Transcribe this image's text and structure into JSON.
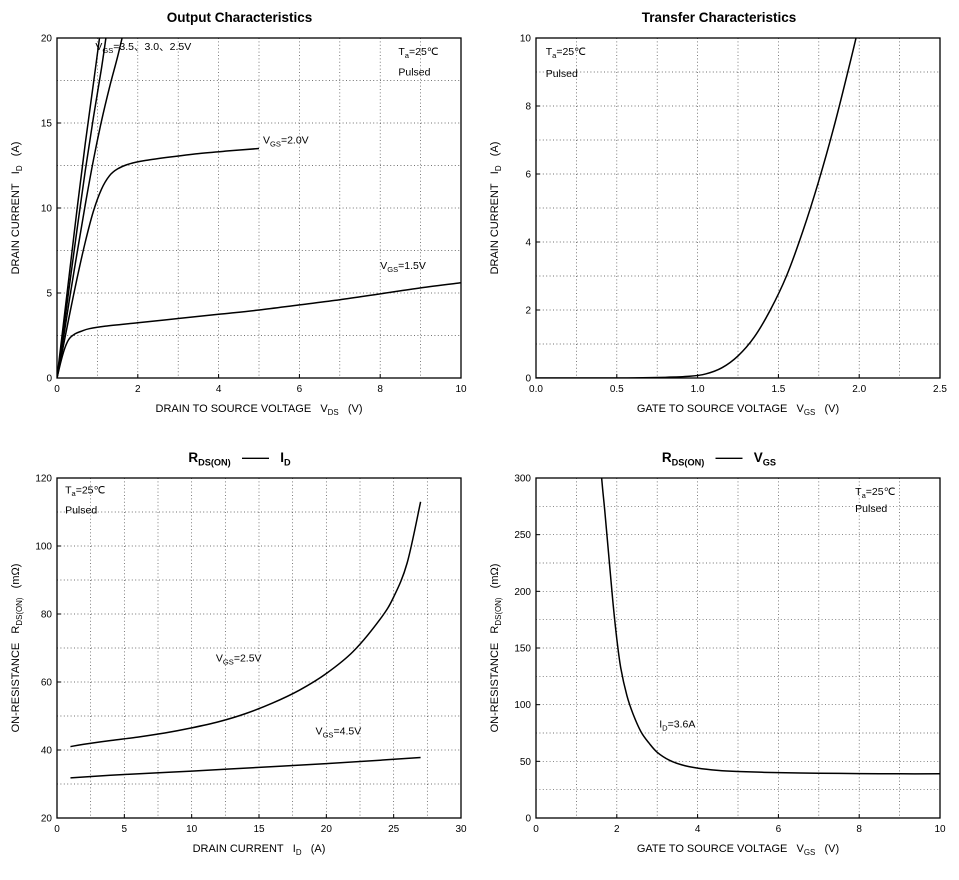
{
  "page": {
    "background": "#ffffff",
    "curve_color": "#000000",
    "grid_color": "#444444"
  },
  "chart_data": [
    {
      "id": "output-characteristics",
      "type": "line",
      "title": "Output Characteristics",
      "xlabel": "DRAIN TO SOURCE VOLTAGE   V_{DS}   (V)",
      "ylabel": "DRAIN CURRENT   I_{D}   (A)",
      "xlim": [
        0,
        10
      ],
      "ylim": [
        0,
        20
      ],
      "xticks": [
        0,
        2,
        4,
        6,
        8,
        10
      ],
      "xtick_labels": [
        "0",
        "2",
        "4",
        "6",
        "8",
        "10"
      ],
      "yticks": [
        0,
        5,
        10,
        15,
        20
      ],
      "grid": {
        "on": true,
        "style": "dotted",
        "x_step": 1,
        "y_step": 2.5
      },
      "legend": "none",
      "series": [
        {
          "name": "V_{GS}=3.5V",
          "points": [
            [
              0,
              0
            ],
            [
              0.15,
              3
            ],
            [
              0.3,
              6
            ],
            [
              0.5,
              10
            ],
            [
              0.7,
              13.8
            ],
            [
              0.9,
              17.3
            ],
            [
              1.08,
              20.5
            ]
          ]
        },
        {
          "name": "V_{GS}=3.0V",
          "points": [
            [
              0,
              0
            ],
            [
              0.15,
              2.6
            ],
            [
              0.3,
              5.3
            ],
            [
              0.5,
              8.8
            ],
            [
              0.7,
              12.2
            ],
            [
              0.9,
              15.3
            ],
            [
              1.1,
              18.2
            ],
            [
              1.24,
              20.5
            ]
          ]
        },
        {
          "name": "V_{GS}=2.5V",
          "points": [
            [
              0,
              0
            ],
            [
              0.15,
              2.2
            ],
            [
              0.3,
              4.5
            ],
            [
              0.5,
              7.4
            ],
            [
              0.7,
              10.2
            ],
            [
              0.9,
              12.8
            ],
            [
              1.1,
              15.1
            ],
            [
              1.3,
              17.1
            ],
            [
              1.5,
              18.9
            ],
            [
              1.66,
              20.5
            ]
          ]
        },
        {
          "name": "V_{GS}=2.0V",
          "points": [
            [
              0,
              0
            ],
            [
              0.15,
              1.8
            ],
            [
              0.3,
              3.6
            ],
            [
              0.5,
              5.9
            ],
            [
              0.7,
              8.0
            ],
            [
              0.9,
              9.8
            ],
            [
              1.1,
              11.1
            ],
            [
              1.3,
              11.9
            ],
            [
              1.5,
              12.3
            ],
            [
              1.8,
              12.6
            ],
            [
              2.2,
              12.8
            ],
            [
              2.8,
              13.0
            ],
            [
              3.5,
              13.2
            ],
            [
              4.2,
              13.35
            ],
            [
              5.0,
              13.5
            ]
          ]
        },
        {
          "name": "V_{GS}=1.5V",
          "points": [
            [
              0,
              0
            ],
            [
              0.1,
              1.0
            ],
            [
              0.2,
              1.8
            ],
            [
              0.3,
              2.3
            ],
            [
              0.45,
              2.6
            ],
            [
              0.6,
              2.75
            ],
            [
              0.8,
              2.9
            ],
            [
              1.2,
              3.05
            ],
            [
              2,
              3.25
            ],
            [
              3,
              3.5
            ],
            [
              4,
              3.75
            ],
            [
              5,
              4.0
            ],
            [
              6,
              4.3
            ],
            [
              7,
              4.6
            ],
            [
              8,
              4.95
            ],
            [
              9,
              5.3
            ],
            [
              10,
              5.6
            ]
          ]
        }
      ],
      "annotations": [
        {
          "text": "V_{GS}=3.5、3.0、2.5V",
          "x": 0.95,
          "y": 19.3,
          "anchor": "start"
        },
        {
          "text": "V_{GS}=2.0V",
          "x": 5.1,
          "y": 13.8,
          "anchor": "start"
        },
        {
          "text": "V_{GS}=1.5V",
          "x": 8.0,
          "y": 6.4,
          "anchor": "start"
        },
        {
          "text": "T_{a}=25℃",
          "x": 8.45,
          "y": 19.0,
          "anchor": "start"
        },
        {
          "text": "Pulsed",
          "x": 8.45,
          "y": 17.8,
          "anchor": "start"
        }
      ]
    },
    {
      "id": "transfer-characteristics",
      "type": "line",
      "title": "Transfer Characteristics",
      "xlabel": "GATE TO SOURCE VOLTAGE   V_{GS}   (V)",
      "ylabel": "DRAIN CURRENT   I_{D}   (A)",
      "xlim": [
        0,
        2.5
      ],
      "ylim": [
        0,
        10
      ],
      "xticks": [
        0,
        0.5,
        1.0,
        1.5,
        2.0,
        2.5
      ],
      "xtick_labels": [
        "0.0",
        "0.5",
        "1.0",
        "1.5",
        "2.0",
        "2.5"
      ],
      "yticks": [
        0,
        2,
        4,
        6,
        8,
        10
      ],
      "grid": {
        "on": true,
        "style": "dotted",
        "x_step": 0.25,
        "y_step": 1
      },
      "legend": "none",
      "series": [
        {
          "name": "I_{D} vs V_{GS}",
          "points": [
            [
              0,
              0
            ],
            [
              0.5,
              0
            ],
            [
              0.8,
              0.02
            ],
            [
              0.95,
              0.05
            ],
            [
              1.05,
              0.12
            ],
            [
              1.15,
              0.3
            ],
            [
              1.25,
              0.65
            ],
            [
              1.35,
              1.2
            ],
            [
              1.45,
              2.0
            ],
            [
              1.55,
              3.0
            ],
            [
              1.65,
              4.3
            ],
            [
              1.75,
              5.8
            ],
            [
              1.85,
              7.5
            ],
            [
              1.95,
              9.4
            ],
            [
              2.0,
              10.4
            ]
          ]
        }
      ],
      "annotations": [
        {
          "text": "T_{a}=25℃",
          "x": 0.06,
          "y": 9.5,
          "anchor": "start"
        },
        {
          "text": "Pulsed",
          "x": 0.06,
          "y": 8.85,
          "anchor": "start"
        }
      ]
    },
    {
      "id": "rdson-vs-id",
      "type": "line",
      "title": "R_{DS(ON)}   ——   I_{D}",
      "xlabel": "DRAIN CURRENT   I_{D}   (A)",
      "ylabel": "ON-RESISTANCE   R_{DS(ON)}   (mΩ)",
      "xlim": [
        0,
        30
      ],
      "ylim": [
        20,
        120
      ],
      "xticks": [
        0,
        5,
        10,
        15,
        20,
        25,
        30
      ],
      "xtick_labels": [
        "0",
        "5",
        "10",
        "15",
        "20",
        "25",
        "30"
      ],
      "yticks": [
        20,
        40,
        60,
        80,
        100,
        120
      ],
      "grid": {
        "on": true,
        "style": "dotted",
        "x_step": 2.5,
        "y_step": 10
      },
      "legend": "none",
      "series": [
        {
          "name": "V_{GS}=2.5V",
          "points": [
            [
              1,
              41
            ],
            [
              2,
              41.7
            ],
            [
              4,
              42.8
            ],
            [
              6,
              43.8
            ],
            [
              8,
              45
            ],
            [
              10,
              46.5
            ],
            [
              12,
              48.3
            ],
            [
              14,
              50.7
            ],
            [
              16,
              53.8
            ],
            [
              18,
              57.6
            ],
            [
              20,
              62.5
            ],
            [
              22,
              69
            ],
            [
              24,
              78.5
            ],
            [
              25,
              85
            ],
            [
              26,
              95
            ],
            [
              27,
              113
            ]
          ]
        },
        {
          "name": "V_{GS}=4.5V",
          "points": [
            [
              1,
              31.8
            ],
            [
              5,
              32.8
            ],
            [
              10,
              33.8
            ],
            [
              15,
              34.9
            ],
            [
              20,
              36
            ],
            [
              24,
              37
            ],
            [
              27,
              37.8
            ]
          ]
        }
      ],
      "annotations": [
        {
          "text": "V_{GS}=2.5V",
          "x": 11.8,
          "y": 66,
          "anchor": "start"
        },
        {
          "text": "V_{GS}=4.5V",
          "x": 19.2,
          "y": 44.5,
          "anchor": "start"
        },
        {
          "text": "T_{a}=25℃",
          "x": 0.6,
          "y": 115.5,
          "anchor": "start"
        },
        {
          "text": "Pulsed",
          "x": 0.6,
          "y": 109.5,
          "anchor": "start"
        }
      ]
    },
    {
      "id": "rdson-vs-vgs",
      "type": "line",
      "title": "R_{DS(ON)}   ——   V_{GS}",
      "xlabel": "GATE TO SOURCE VOLTAGE   V_{GS}   (V)",
      "ylabel": "ON-RESISTANCE   R_{DS(ON)}   (mΩ)",
      "xlim": [
        0,
        10
      ],
      "ylim": [
        0,
        300
      ],
      "xticks": [
        0,
        2,
        4,
        6,
        8,
        10
      ],
      "xtick_labels": [
        "0",
        "2",
        "4",
        "6",
        "8",
        "10"
      ],
      "yticks": [
        0,
        50,
        100,
        150,
        200,
        250,
        300
      ],
      "grid": {
        "on": true,
        "style": "dotted",
        "x_step": 1,
        "y_step": 25
      },
      "legend": "none",
      "series": [
        {
          "name": "I_{D}=3.6A",
          "points": [
            [
              1.6,
              310
            ],
            [
              1.65,
              290
            ],
            [
              1.7,
              272
            ],
            [
              1.8,
              232
            ],
            [
              1.9,
              192
            ],
            [
              2.0,
              158
            ],
            [
              2.1,
              132
            ],
            [
              2.25,
              108
            ],
            [
              2.4,
              92
            ],
            [
              2.6,
              76
            ],
            [
              2.8,
              66
            ],
            [
              3.0,
              58
            ],
            [
              3.3,
              51
            ],
            [
              3.6,
              47
            ],
            [
              4.0,
              44
            ],
            [
              4.5,
              42
            ],
            [
              5.0,
              41
            ],
            [
              6.0,
              40
            ],
            [
              7.0,
              39.5
            ],
            [
              8.0,
              39.2
            ],
            [
              9.0,
              39
            ],
            [
              10,
              39
            ]
          ]
        }
      ],
      "annotations": [
        {
          "text": "I_{D}=3.6A",
          "x": 3.05,
          "y": 80,
          "anchor": "start"
        },
        {
          "text": "T_{a}=25℃",
          "x": 7.9,
          "y": 285,
          "anchor": "start"
        },
        {
          "text": "Pulsed",
          "x": 7.9,
          "y": 270,
          "anchor": "start"
        }
      ]
    }
  ]
}
